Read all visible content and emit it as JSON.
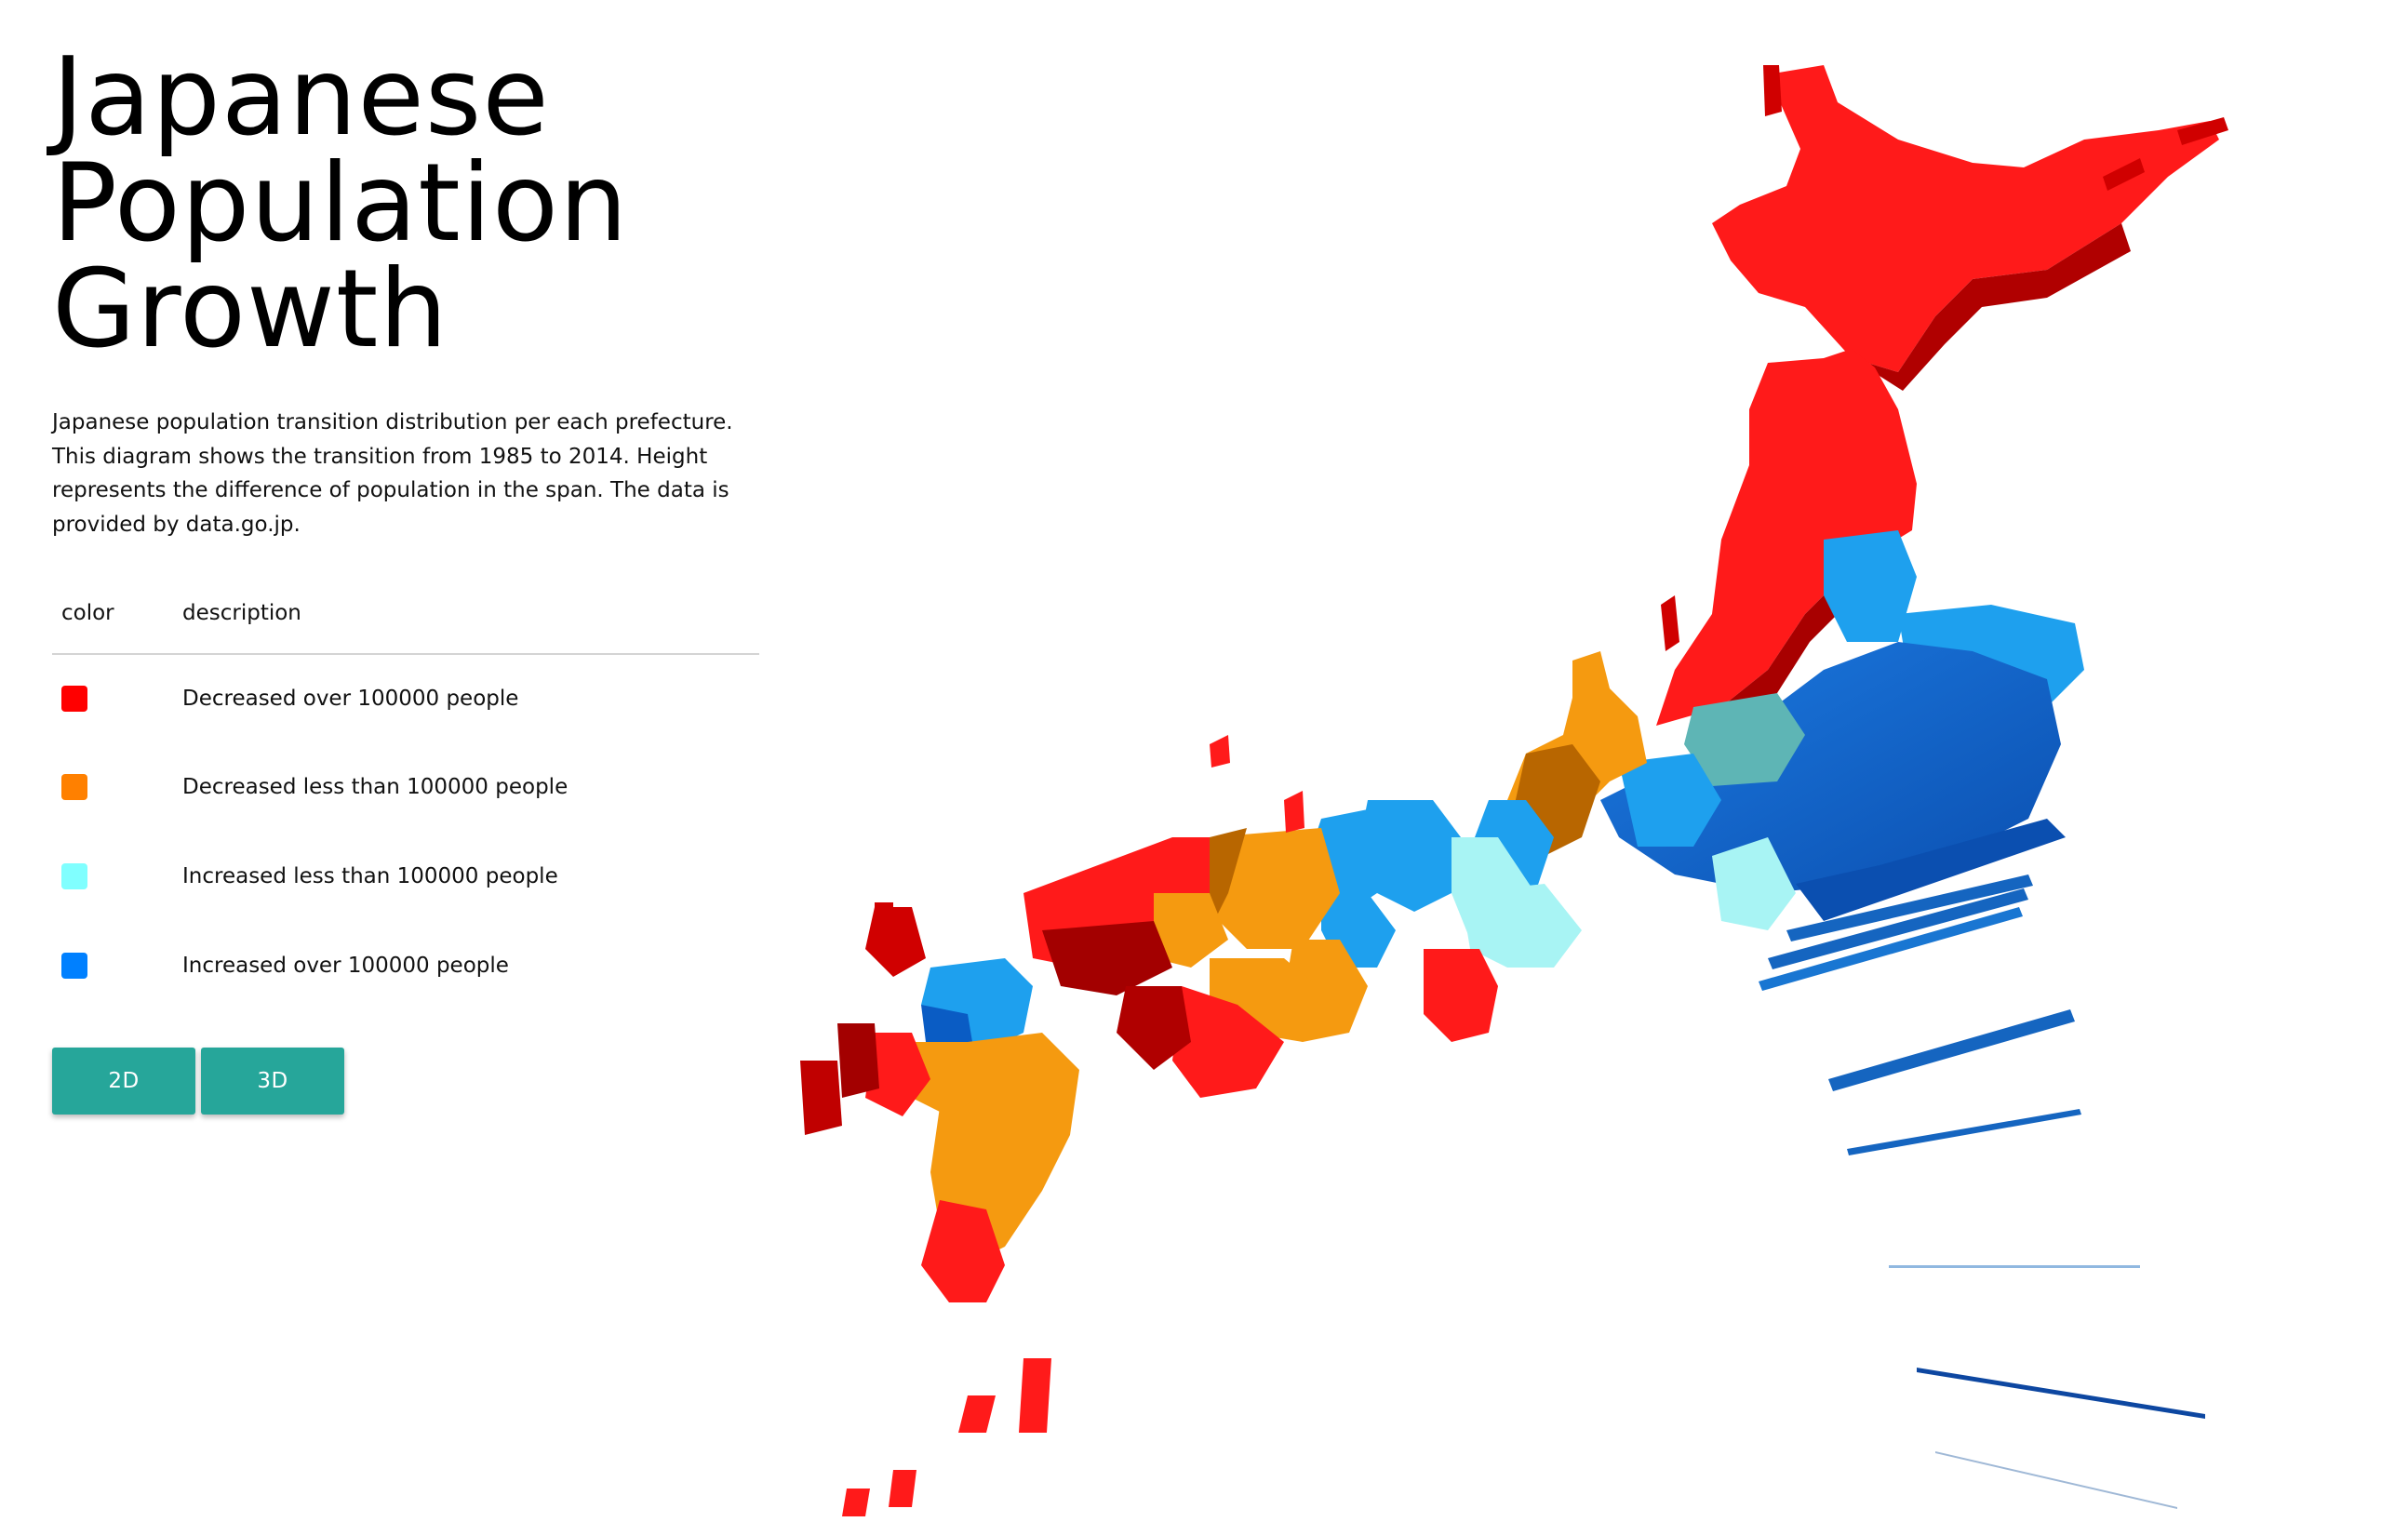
{
  "title_lines": [
    "Japanese",
    "Population",
    "Growth"
  ],
  "description": "Japanese population transition distribution per each prefecture. This diagram shows the transition from 1985 to 2014. Height represents the difference of population in the span. The data is provided by data.go.jp.",
  "legend": {
    "header_color": "color",
    "header_description": "description",
    "items": [
      {
        "color": "#ff0000",
        "label": "Decreased over 100000 people"
      },
      {
        "color": "#ff8000",
        "label": "Decreased less than 100000 people"
      },
      {
        "color": "#80ffff",
        "label": "Increased less than 100000 people"
      },
      {
        "color": "#0080ff",
        "label": "Increased over 100000 people"
      }
    ]
  },
  "buttons": {
    "two_d": "2D",
    "three_d": "3D"
  },
  "map_colors": {
    "red": "#ff1a1a",
    "red_side": "#b00000",
    "orange": "#f59a10",
    "orange_side": "#b86600",
    "cyan": "#a8f4f4",
    "cyan_side": "#6fc9cc",
    "blue": "#1ea0ee",
    "blue_side": "#0a5cc4",
    "teal": "#5eb5b5"
  }
}
